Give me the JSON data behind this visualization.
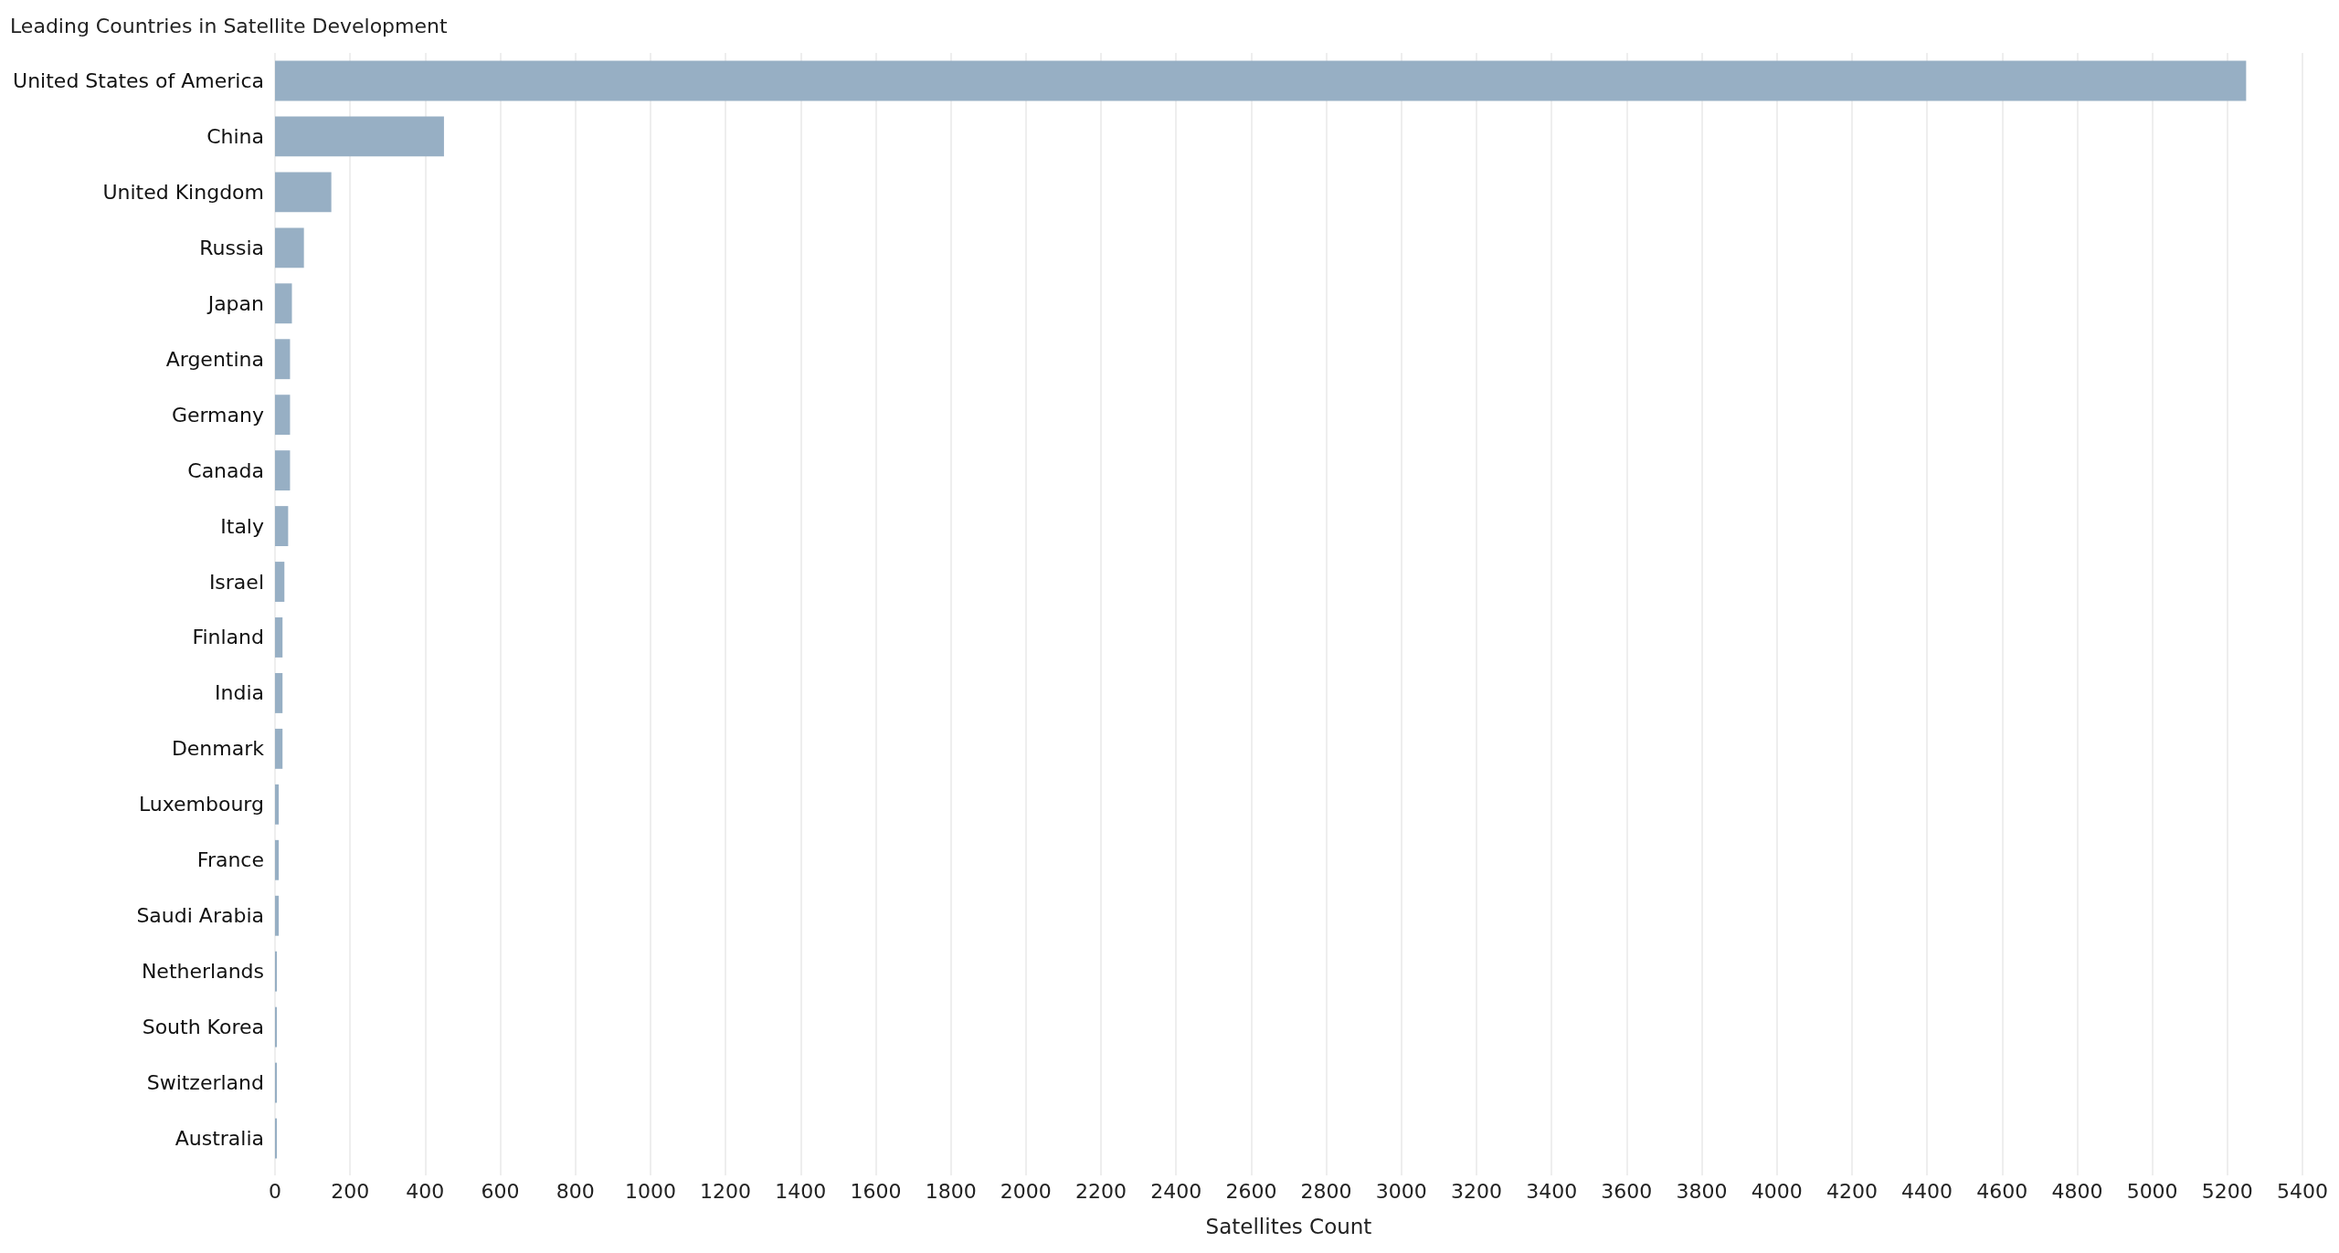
{
  "chart_data": {
    "type": "bar",
    "orientation": "horizontal",
    "title": "Leading Countries in Satellite Development",
    "xlabel": "Satellites Count",
    "categories": [
      "United States of America",
      "China",
      "United Kingdom",
      "Russia",
      "Japan",
      "Argentina",
      "Germany",
      "Canada",
      "Italy",
      "Israel",
      "Finland",
      "India",
      "Denmark",
      "Luxembourg",
      "France",
      "Saudi Arabia",
      "Netherlands",
      "South Korea",
      "Switzerland",
      "Australia"
    ],
    "values": [
      5250,
      450,
      150,
      77,
      45,
      40,
      40,
      40,
      35,
      25,
      20,
      20,
      20,
      10,
      10,
      10,
      5,
      5,
      5,
      5
    ],
    "color": "#97afc4",
    "xlim": [
      0,
      5400
    ],
    "xticks": [
      0,
      200,
      400,
      600,
      800,
      1000,
      1200,
      1400,
      1600,
      1800,
      2000,
      2200,
      2400,
      2600,
      2800,
      3000,
      3200,
      3400,
      3600,
      3800,
      4000,
      4200,
      4400,
      4600,
      4800,
      5000,
      5200,
      5400
    ],
    "grid": "x"
  }
}
